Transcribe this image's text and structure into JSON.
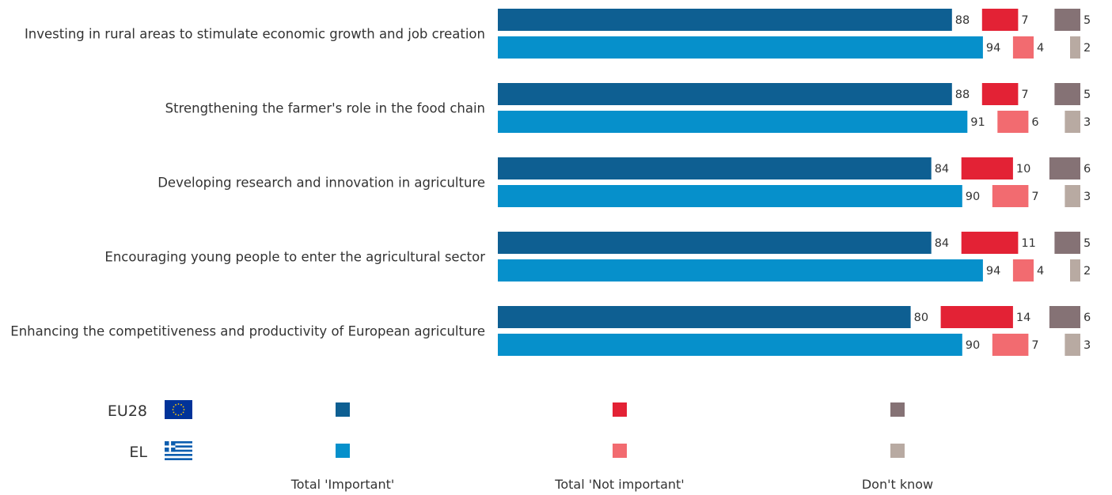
{
  "chart_data": {
    "type": "bar",
    "orientation": "horizontal",
    "stacked": true,
    "categories": [
      "Investing in rural areas to stimulate economic growth and job creation",
      "Strengthening the farmer's role in the food chain",
      "Developing research and innovation in agriculture",
      "Encouraging young people to enter the agricultural sector",
      "Enhancing the competitiveness and productivity of European agriculture"
    ],
    "responses": [
      {
        "name": "Total 'Important'",
        "colors": {
          "EU28": "#0e5f92",
          "EL": "#0690cb"
        }
      },
      {
        "name": "Total 'Not important'",
        "colors": {
          "EU28": "#e32235",
          "EL": "#f26b70"
        }
      },
      {
        "name": "Don't know",
        "colors": {
          "EU28": "#857275",
          "EL": "#b8aaa2"
        }
      }
    ],
    "series": [
      {
        "name": "EU28",
        "important": [
          88,
          88,
          84,
          84,
          80
        ],
        "not_important": [
          7,
          7,
          10,
          11,
          14
        ],
        "dont_know": [
          5,
          5,
          6,
          5,
          6
        ]
      },
      {
        "name": "EL",
        "important": [
          94,
          91,
          90,
          94,
          90
        ],
        "not_important": [
          4,
          6,
          7,
          4,
          7
        ],
        "dont_know": [
          2,
          3,
          3,
          2,
          3
        ]
      }
    ],
    "xlim": [
      0,
      100
    ]
  }
}
